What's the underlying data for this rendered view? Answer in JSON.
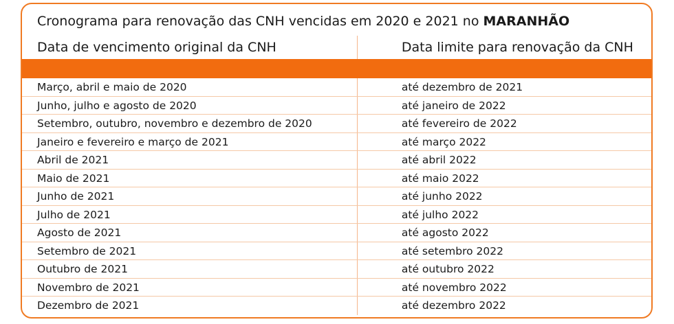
{
  "title": {
    "text": "Cronograma para renovação das CNH vencidas em 2020 e 2021 no ",
    "emphasis": "MARANHÃO"
  },
  "table": {
    "headers": [
      "Data de vencimento original da CNH",
      "Data limite para renovação da CNH"
    ],
    "rows": [
      [
        "Março, abril e maio de 2020",
        "até dezembro de 2021"
      ],
      [
        "Junho, julho e agosto de 2020",
        "até janeiro de 2022"
      ],
      [
        "Setembro, outubro, novembro e dezembro de 2020",
        "até fevereiro de 2022"
      ],
      [
        "Janeiro e fevereiro e março de 2021",
        "até março 2022"
      ],
      [
        "Abril de 2021",
        "até abril 2022"
      ],
      [
        "Maio de 2021",
        "até maio 2022"
      ],
      [
        "Junho de 2021",
        "até junho 2022"
      ],
      [
        "Julho de 2021",
        "até julho 2022"
      ],
      [
        "Agosto de 2021",
        "até agosto 2022"
      ],
      [
        "Setembro de 2021",
        "até setembro 2022"
      ],
      [
        "Outubro de 2021",
        "até outubro 2022"
      ],
      [
        "Novembro de 2021",
        "até novembro 2022"
      ],
      [
        "Dezembro de 2021",
        "até dezembro 2022"
      ]
    ]
  },
  "colors": {
    "accent": "#f26c0f",
    "border": "#f07a22",
    "divider": "#f5c8a6"
  }
}
